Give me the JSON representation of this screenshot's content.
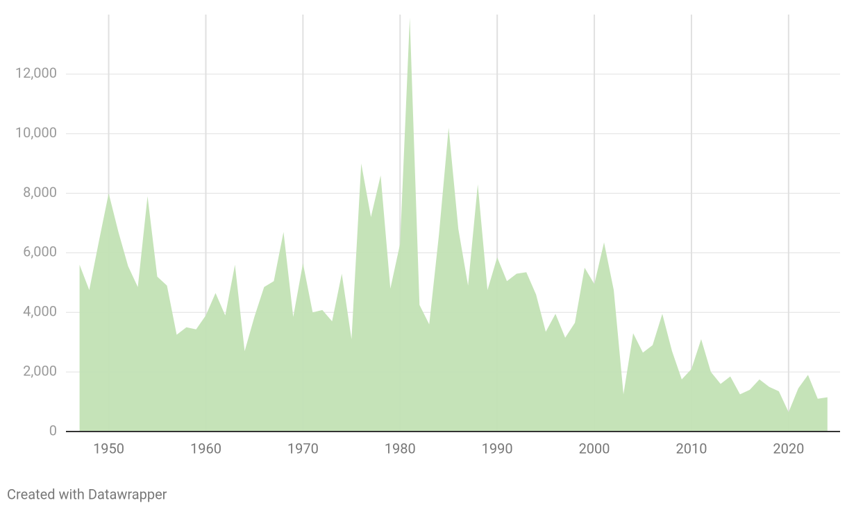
{
  "chart_data": {
    "type": "area",
    "x": [
      1947,
      1948,
      1949,
      1950,
      1951,
      1952,
      1953,
      1954,
      1955,
      1956,
      1957,
      1958,
      1959,
      1960,
      1961,
      1962,
      1963,
      1964,
      1965,
      1966,
      1967,
      1968,
      1969,
      1970,
      1971,
      1972,
      1973,
      1974,
      1975,
      1976,
      1977,
      1978,
      1979,
      1980,
      1981,
      1982,
      1983,
      1984,
      1985,
      1986,
      1987,
      1988,
      1989,
      1990,
      1991,
      1992,
      1993,
      1994,
      1995,
      1996,
      1997,
      1998,
      1999,
      2000,
      2001,
      2002,
      2003,
      2004,
      2005,
      2006,
      2007,
      2008,
      2009,
      2010,
      2011,
      2012,
      2013,
      2014,
      2015,
      2016,
      2017,
      2018,
      2019,
      2020,
      2021,
      2022,
      2023,
      2024
    ],
    "values": [
      5600,
      4750,
      6400,
      8000,
      6700,
      5550,
      4850,
      7900,
      5200,
      4900,
      3250,
      3500,
      3430,
      3900,
      4650,
      3900,
      5600,
      2700,
      3850,
      4850,
      5050,
      6700,
      3850,
      5650,
      4000,
      4080,
      3700,
      5300,
      3100,
      9000,
      7200,
      8600,
      4800,
      6300,
      13900,
      4250,
      3600,
      6600,
      10200,
      6800,
      4900,
      8300,
      4750,
      5850,
      5050,
      5300,
      5350,
      4600,
      3350,
      3950,
      3150,
      3650,
      5500,
      4950,
      6350,
      4750,
      1250,
      3300,
      2650,
      2900,
      3950,
      2700,
      1750,
      2100,
      3100,
      2000,
      1600,
      1850,
      1250,
      1400,
      1750,
      1500,
      1350,
      650,
      1450,
      1900,
      1100,
      1150
    ],
    "color": "#c2e2b4",
    "xlim": [
      1945.6,
      2025.3
    ],
    "xticks": [
      1950,
      1960,
      1970,
      1980,
      1990,
      2000,
      2010,
      2020
    ],
    "ylim": [
      0,
      14000
    ],
    "yticks": [
      0,
      {
        "value": 2000,
        "label": "2,000"
      },
      {
        "value": 4000,
        "label": "4,000"
      },
      {
        "value": 6000,
        "label": "6,000"
      },
      {
        "value": 8000,
        "label": "8,000"
      },
      {
        "value": 10000,
        "label": "10,000"
      },
      {
        "value": 12000,
        "label": "12,000"
      }
    ],
    "grid": true,
    "credit": "Created with Datawrapper"
  }
}
